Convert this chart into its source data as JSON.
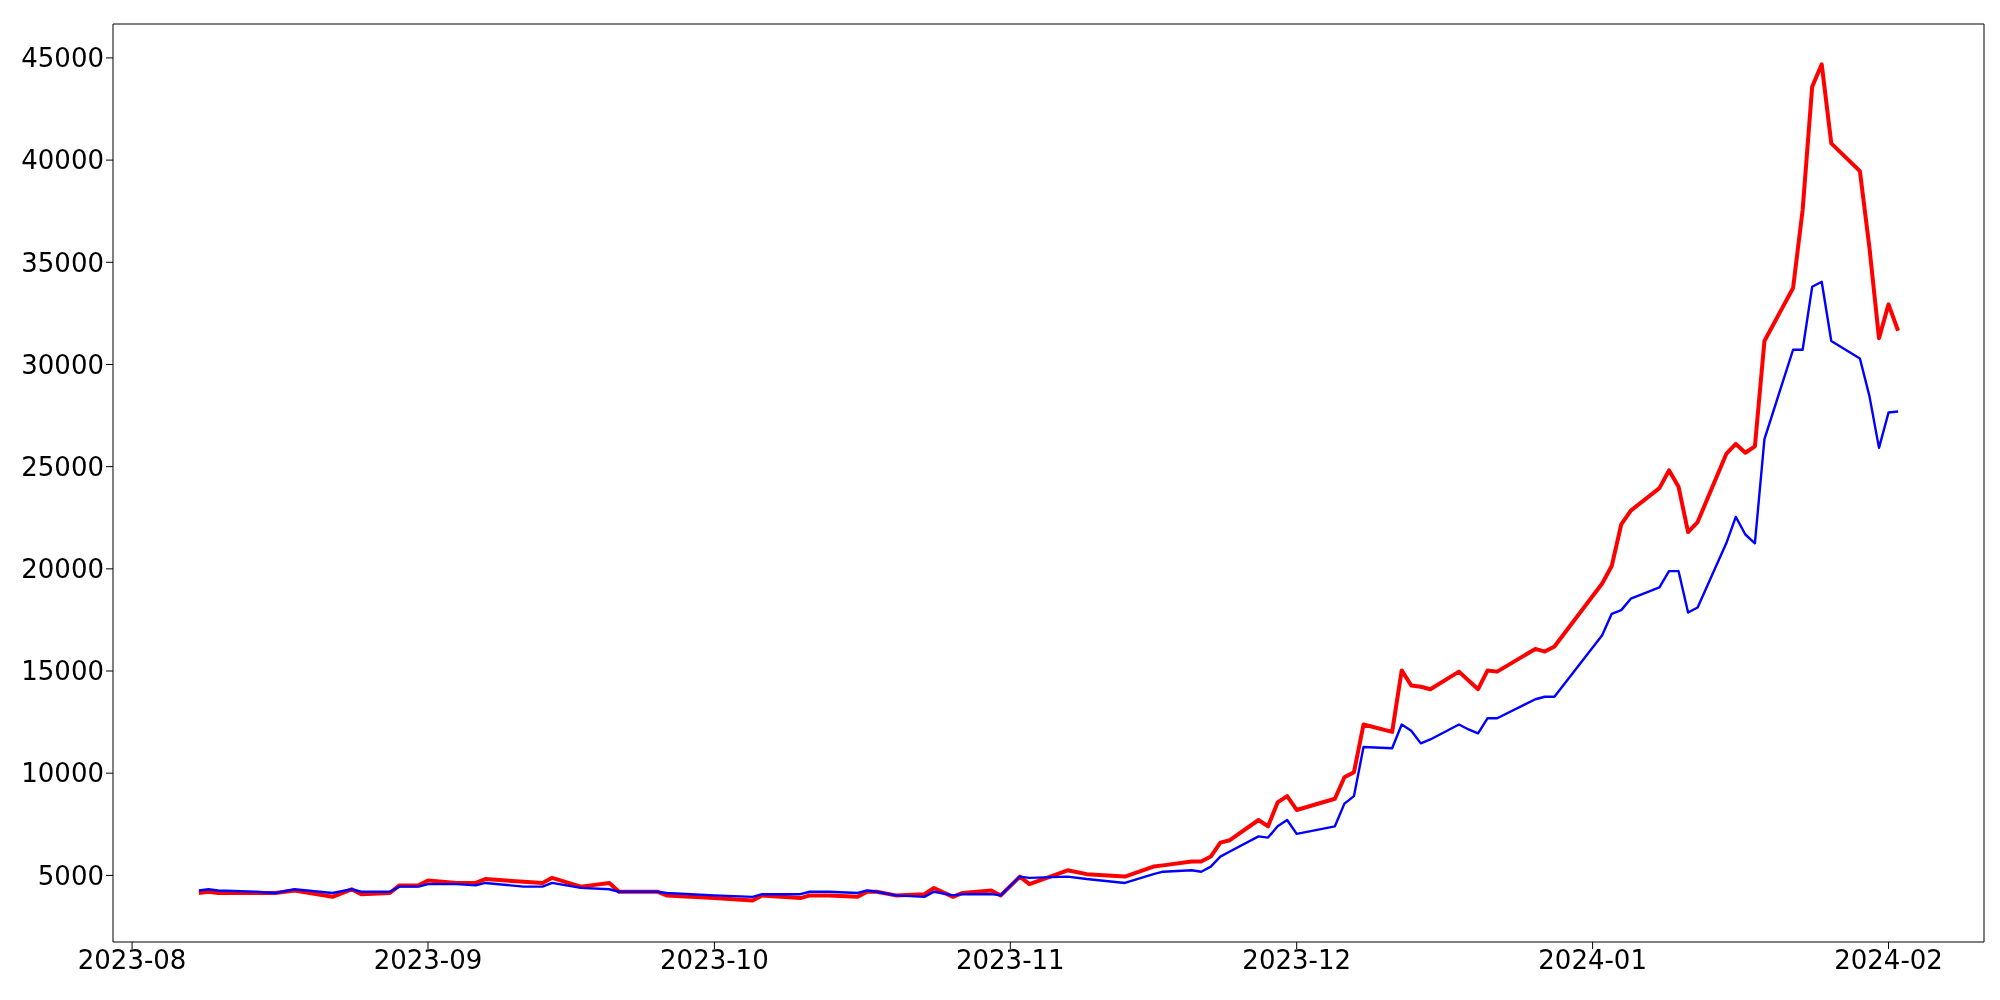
{
  "chart_data": {
    "type": "line",
    "x": [
      "2023-08-08",
      "2023-08-09",
      "2023-08-10",
      "2023-08-14",
      "2023-08-16",
      "2023-08-18",
      "2023-08-22",
      "2023-08-24",
      "2023-08-25",
      "2023-08-28",
      "2023-08-29",
      "2023-08-31",
      "2023-09-01",
      "2023-09-04",
      "2023-09-06",
      "2023-09-07",
      "2023-09-11",
      "2023-09-13",
      "2023-09-14",
      "2023-09-17",
      "2023-09-20",
      "2023-09-21",
      "2023-09-25",
      "2023-09-26",
      "2023-10-01",
      "2023-10-05",
      "2023-10-06",
      "2023-10-10",
      "2023-10-11",
      "2023-10-13",
      "2023-10-16",
      "2023-10-17",
      "2023-10-18",
      "2023-10-20",
      "2023-10-23",
      "2023-10-24",
      "2023-10-26",
      "2023-10-27",
      "2023-10-30",
      "2023-10-31",
      "2023-11-02",
      "2023-11-03",
      "2023-11-07",
      "2023-11-09",
      "2023-11-13",
      "2023-11-16",
      "2023-11-17",
      "2023-11-20",
      "2023-11-21",
      "2023-11-22",
      "2023-11-23",
      "2023-11-24",
      "2023-11-27",
      "2023-11-28",
      "2023-11-29",
      "2023-11-30",
      "2023-12-01",
      "2023-12-05",
      "2023-12-06",
      "2023-12-07",
      "2023-12-08",
      "2023-12-11",
      "2023-12-12",
      "2023-12-13",
      "2023-12-14",
      "2023-12-15",
      "2023-12-18",
      "2023-12-19",
      "2023-12-20",
      "2023-12-21",
      "2023-12-22",
      "2023-12-26",
      "2023-12-27",
      "2023-12-28",
      "2024-01-02",
      "2024-01-03",
      "2024-01-04",
      "2024-01-05",
      "2024-01-08",
      "2024-01-09",
      "2024-01-10",
      "2024-01-11",
      "2024-01-12",
      "2024-01-15",
      "2024-01-16",
      "2024-01-17",
      "2024-01-18",
      "2024-01-19",
      "2024-01-22",
      "2024-01-23",
      "2024-01-24",
      "2024-01-25",
      "2024-01-26",
      "2024-01-29",
      "2024-01-30",
      "2024-01-31",
      "2024-02-01",
      "2024-02-02"
    ],
    "series": [
      {
        "color": "#ff0000",
        "values": [
          4140,
          4200,
          4140,
          4140,
          4140,
          4260,
          3950,
          4320,
          4080,
          4140,
          4510,
          4510,
          4750,
          4630,
          4630,
          4820,
          4690,
          4630,
          4880,
          4450,
          4630,
          4200,
          4200,
          4020,
          3890,
          3770,
          4020,
          3890,
          4020,
          4020,
          3950,
          4200,
          4200,
          4020,
          4080,
          4380,
          3950,
          4140,
          4260,
          4020,
          4940,
          4570,
          5250,
          5060,
          4940,
          5430,
          5490,
          5680,
          5680,
          5920,
          6600,
          6720,
          7710,
          7400,
          8570,
          8880,
          8200,
          8750,
          9800,
          10050,
          12380,
          12020,
          15030,
          14290,
          14230,
          14110,
          14970,
          14540,
          14110,
          15030,
          14970,
          16080,
          15950,
          16200,
          19280,
          20140,
          22170,
          22850,
          23950,
          24820,
          24020,
          21800,
          22290,
          25620,
          26110,
          25680,
          25990,
          31150,
          33740,
          37560,
          43590,
          44690,
          40820,
          39460,
          35710,
          31280,
          32940,
          31650
        ]
      },
      {
        "color": "#0000ff",
        "values": [
          4260,
          4320,
          4260,
          4200,
          4140,
          4320,
          4140,
          4320,
          4200,
          4200,
          4450,
          4450,
          4570,
          4570,
          4510,
          4630,
          4450,
          4450,
          4630,
          4390,
          4320,
          4200,
          4200,
          4140,
          4020,
          3950,
          4080,
          4080,
          4200,
          4200,
          4140,
          4260,
          4200,
          4020,
          3950,
          4200,
          4020,
          4080,
          4080,
          4020,
          4940,
          4880,
          4940,
          4820,
          4630,
          5060,
          5180,
          5250,
          5180,
          5430,
          5920,
          6170,
          6910,
          6850,
          7400,
          7710,
          7030,
          7400,
          8510,
          8880,
          11280,
          11220,
          12380,
          12080,
          11460,
          11650,
          12380,
          12140,
          11950,
          12690,
          12690,
          13620,
          13740,
          13740,
          16750,
          17800,
          17980,
          18540,
          19090,
          19890,
          19890,
          17860,
          18110,
          21250,
          22540,
          21680,
          21250,
          26350,
          30720,
          30720,
          33800,
          34050,
          31150,
          30290,
          28450,
          25920,
          27650,
          27700
        ]
      }
    ],
    "xlim": [
      "2023-07-30",
      "2024-02-11"
    ],
    "xticks": [
      "2023-08",
      "2023-09",
      "2023-10",
      "2023-11",
      "2023-12",
      "2024-01",
      "2024-02"
    ],
    "ylim": [
      1740,
      46660
    ],
    "yticks": [
      5000,
      10000,
      15000,
      20000,
      25000,
      30000,
      35000,
      40000,
      45000
    ],
    "grid": false,
    "legend": false
  }
}
